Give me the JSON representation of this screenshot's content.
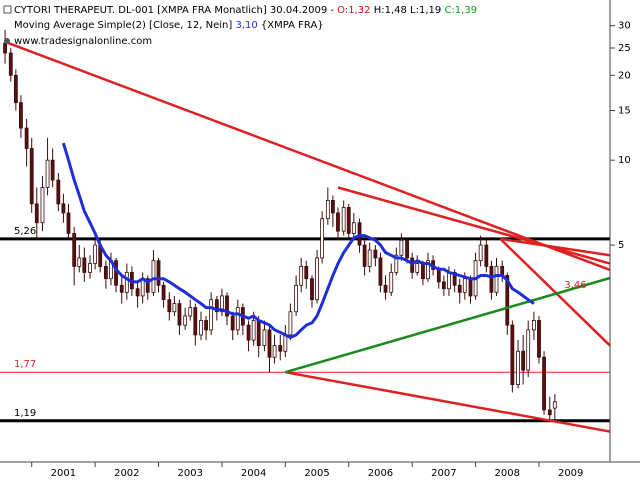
{
  "chart_data": {
    "type": "candlestick",
    "header": {
      "title": "CYTORI THERAPEUT.  DL-001 [XMPA FRA  Monatlich] 30.04.2009 -",
      "open_text": "O:1,32",
      "hl_text": "H:1,48 L:1,19",
      "close_text": "C:1,39",
      "indicator": "Moving Average Simple(2) [Close, 12, Nein]",
      "indicator_value": "3,10",
      "indicator_source": "{XMPA FRA}",
      "website": "www.tradesignalonline.com"
    },
    "log_scale": true,
    "xlim": [
      2000.5,
      2010.12
    ],
    "xticks": [
      2001,
      2002,
      2003,
      2004,
      2005,
      2006,
      2007,
      2008,
      2009
    ],
    "ylim": [
      0.85,
      37
    ],
    "yticks": [
      5,
      10,
      15,
      20,
      25,
      30
    ],
    "up_color": "#ffffff",
    "down_color": "#5a1010",
    "outline_color": "#3a0a0a",
    "x": [
      2000.58,
      2000.67,
      2000.75,
      2000.83,
      2000.92,
      2001.0,
      2001.08,
      2001.17,
      2001.25,
      2001.33,
      2001.42,
      2001.5,
      2001.58,
      2001.67,
      2001.75,
      2001.83,
      2001.92,
      2002.0,
      2002.08,
      2002.17,
      2002.25,
      2002.33,
      2002.42,
      2002.5,
      2002.58,
      2002.67,
      2002.75,
      2002.83,
      2002.92,
      2003.0,
      2003.08,
      2003.17,
      2003.25,
      2003.33,
      2003.42,
      2003.5,
      2003.58,
      2003.67,
      2003.75,
      2003.83,
      2003.92,
      2004.0,
      2004.08,
      2004.17,
      2004.25,
      2004.33,
      2004.42,
      2004.5,
      2004.58,
      2004.67,
      2004.75,
      2004.83,
      2004.92,
      2005.0,
      2005.08,
      2005.17,
      2005.25,
      2005.33,
      2005.42,
      2005.5,
      2005.58,
      2005.67,
      2005.75,
      2005.83,
      2005.92,
      2006.0,
      2006.08,
      2006.17,
      2006.25,
      2006.33,
      2006.42,
      2006.5,
      2006.58,
      2006.67,
      2006.75,
      2006.83,
      2006.92,
      2007.0,
      2007.08,
      2007.17,
      2007.25,
      2007.33,
      2007.42,
      2007.5,
      2007.58,
      2007.67,
      2007.75,
      2007.83,
      2007.92,
      2008.0,
      2008.08,
      2008.17,
      2008.25,
      2008.33,
      2008.42,
      2008.5,
      2008.58,
      2008.67,
      2008.75,
      2008.83,
      2008.92,
      2009.0,
      2009.08,
      2009.17,
      2009.25
    ],
    "open": [
      26,
      24,
      20,
      16,
      13,
      11,
      7,
      6,
      8,
      10,
      8.5,
      7,
      6.5,
      5.5,
      4.2,
      4.5,
      4,
      4.3,
      5,
      4.2,
      3.8,
      4.4,
      3.6,
      3.4,
      4,
      3.5,
      3.3,
      3.8,
      3.4,
      4.4,
      3.6,
      3.2,
      2.9,
      3.1,
      2.6,
      2.8,
      3,
      2.4,
      2.7,
      2.5,
      3.2,
      2.9,
      3.3,
      2.8,
      2.5,
      3,
      2.6,
      2.3,
      2.7,
      2.2,
      2.5,
      2,
      2.2,
      2.1,
      2.4,
      2.9,
      3.6,
      4.2,
      3.8,
      3.2,
      4.5,
      6.2,
      7.2,
      6.5,
      5.6,
      6.8,
      5.5,
      6,
      5,
      4.2,
      4.8,
      4.5,
      3.6,
      3.4,
      4,
      4.6,
      5.2,
      4.5,
      4,
      4.3,
      3.8,
      4.4,
      4.1,
      3.7,
      3.5,
      4,
      3.6,
      3.4,
      3.8,
      3.3,
      4.4,
      5,
      4.2,
      3.4,
      4.2,
      3.9,
      2.6,
      1.6,
      2.1,
      1.8,
      2.5,
      2.7,
      2,
      1.3,
      1.32
    ],
    "high": [
      29,
      25,
      21,
      17,
      14,
      12,
      8,
      8.8,
      12,
      11,
      9,
      7.6,
      7,
      5.8,
      5,
      4.9,
      4.6,
      5.4,
      5.2,
      4.4,
      4.7,
      4.5,
      3.9,
      4.3,
      4.2,
      3.7,
      4,
      3.9,
      4.8,
      4.5,
      3.7,
      3.4,
      3.3,
      3.2,
      3,
      3.2,
      3.1,
      2.9,
      2.8,
      3.4,
      3.3,
      3.5,
      3.4,
      2.9,
      3.2,
      3.1,
      2.7,
      2.9,
      2.8,
      2.7,
      2.6,
      2.4,
      2.4,
      2.6,
      3.1,
      3.9,
      4.5,
      4.4,
      3.9,
      4.8,
      6.6,
      8,
      7.5,
      6.8,
      7.2,
      7,
      6.5,
      6.2,
      5.2,
      5.1,
      5,
      4.7,
      3.9,
      4.3,
      4.9,
      5.5,
      5.3,
      4.7,
      4.6,
      4.4,
      4.7,
      4.6,
      4.2,
      3.9,
      4.2,
      4.1,
      3.8,
      4,
      3.9,
      4.7,
      5.4,
      5.2,
      4.4,
      4.5,
      4.4,
      4,
      2.7,
      2.3,
      2.4,
      2.7,
      2.9,
      2.8,
      2.1,
      1.45,
      1.48
    ],
    "low": [
      22,
      19,
      15,
      12,
      9.5,
      6.5,
      5.2,
      5.6,
      7.5,
      8,
      6.6,
      6,
      5.2,
      3.6,
      4,
      3.7,
      3.8,
      4.1,
      4,
      3.5,
      3.6,
      3.4,
      3.1,
      3.2,
      3.3,
      3,
      3.1,
      3.2,
      3.3,
      3.4,
      3,
      2.7,
      2.8,
      2.4,
      2.5,
      2.7,
      2.2,
      2.3,
      2.3,
      2.4,
      2.7,
      2.8,
      2.6,
      2.3,
      2.4,
      2.4,
      2.1,
      2.2,
      2,
      2.1,
      1.77,
      1.9,
      1.95,
      2,
      2.3,
      2.8,
      3.4,
      3.5,
      3,
      3.1,
      4.3,
      5.9,
      5.8,
      5.2,
      5.4,
      5.2,
      5.2,
      4.7,
      3.9,
      4,
      4.2,
      3.4,
      3.2,
      3.3,
      3.9,
      4.4,
      4.3,
      3.8,
      3.9,
      3.6,
      3.7,
      3.9,
      3.5,
      3.3,
      3.3,
      3.4,
      3.1,
      3.2,
      3.1,
      3.2,
      4.2,
      4,
      3.2,
      3.3,
      3.7,
      2.4,
      1.5,
      1.55,
      1.6,
      1.7,
      2.3,
      1.9,
      1.25,
      1.19,
      1.19
    ],
    "close": [
      24,
      20,
      16,
      13,
      11,
      7,
      6,
      8,
      10,
      8.5,
      7,
      6.5,
      5.5,
      4.2,
      4.5,
      4,
      4.3,
      5,
      4.2,
      3.8,
      4.4,
      3.6,
      3.4,
      4,
      3.5,
      3.3,
      3.8,
      3.4,
      4.4,
      3.6,
      3.2,
      2.9,
      3.1,
      2.6,
      2.8,
      3,
      2.4,
      2.7,
      2.5,
      3.2,
      2.9,
      3.3,
      2.8,
      2.5,
      3,
      2.6,
      2.3,
      2.7,
      2.2,
      2.5,
      2,
      2.2,
      2.1,
      2.4,
      2.9,
      3.6,
      4.2,
      3.8,
      3.2,
      4.5,
      6.2,
      7.2,
      6.5,
      5.6,
      6.8,
      5.5,
      6,
      5,
      4.2,
      4.8,
      4.5,
      3.6,
      3.4,
      4,
      4.6,
      5.2,
      4.5,
      4,
      4.3,
      3.8,
      4.4,
      4.1,
      3.7,
      3.5,
      4,
      3.6,
      3.4,
      3.8,
      3.3,
      4.4,
      5,
      4.2,
      3.4,
      4.2,
      3.9,
      2.6,
      1.6,
      2.1,
      1.8,
      2.5,
      2.7,
      2,
      1.3,
      1.25,
      1.39
    ],
    "series": [
      {
        "name": "Moving Average Simple(2)",
        "color": "#1f2fd8",
        "values": [
          null,
          null,
          null,
          null,
          null,
          null,
          null,
          null,
          null,
          null,
          null,
          11.5,
          10,
          8.5,
          7.5,
          6.6,
          6,
          5.5,
          5,
          4.6,
          4.4,
          4.1,
          3.9,
          3.8,
          3.7,
          3.7,
          3.8,
          3.7,
          3.8,
          3.8,
          3.8,
          3.7,
          3.6,
          3.5,
          3.4,
          3.3,
          3.2,
          3.1,
          3,
          3,
          2.95,
          2.95,
          2.9,
          2.85,
          2.85,
          2.8,
          2.75,
          2.8,
          2.7,
          2.65,
          2.6,
          2.5,
          2.45,
          2.4,
          2.35,
          2.4,
          2.5,
          2.6,
          2.65,
          2.8,
          3.1,
          3.5,
          3.9,
          4.3,
          4.7,
          5,
          5.3,
          5.4,
          5.4,
          5.3,
          5.2,
          5,
          4.7,
          4.6,
          4.5,
          4.5,
          4.4,
          4.3,
          4.4,
          4.3,
          4.3,
          4.2,
          4.1,
          4.1,
          4,
          3.95,
          3.9,
          3.85,
          3.8,
          3.8,
          3.9,
          3.9,
          3.85,
          3.9,
          3.9,
          3.75,
          3.5,
          3.4,
          3.3,
          3.2,
          3.1,
          null,
          null,
          null,
          null
        ]
      }
    ],
    "levels": [
      {
        "value": 5.26,
        "label": "5,26",
        "color": "#000000",
        "width": 3
      },
      {
        "value": 1.77,
        "label": "1,77",
        "color": "#e02020",
        "width": 1
      },
      {
        "value": 1.19,
        "label": "1,19",
        "color": "#000000",
        "width": 3
      }
    ],
    "trendlines": [
      {
        "color": "#e02020",
        "x": [
          2000.58,
          2010.12
        ],
        "y": [
          26.3,
          4.08
        ]
      },
      {
        "color": "#e02020",
        "x": [
          2005.83,
          2010.12
        ],
        "y": [
          8,
          4.3
        ]
      },
      {
        "color": "#e02020",
        "x": [
          2008.39,
          2010.12
        ],
        "y": [
          5.26,
          4.6
        ]
      },
      {
        "color": "#e02020",
        "x": [
          2008.39,
          2010.12
        ],
        "y": [
          5.26,
          2.2
        ]
      },
      {
        "color": "#e02020",
        "x": [
          2005,
          2010.12
        ],
        "y": [
          1.77,
          1.09
        ]
      },
      {
        "color": "#1a8a1a",
        "x": [
          2005,
          2010.12
        ],
        "y": [
          1.77,
          3.82
        ]
      }
    ],
    "annotation": {
      "x": 2009.4,
      "value": 3.46,
      "label": "3,46",
      "color": "#e02020"
    }
  }
}
